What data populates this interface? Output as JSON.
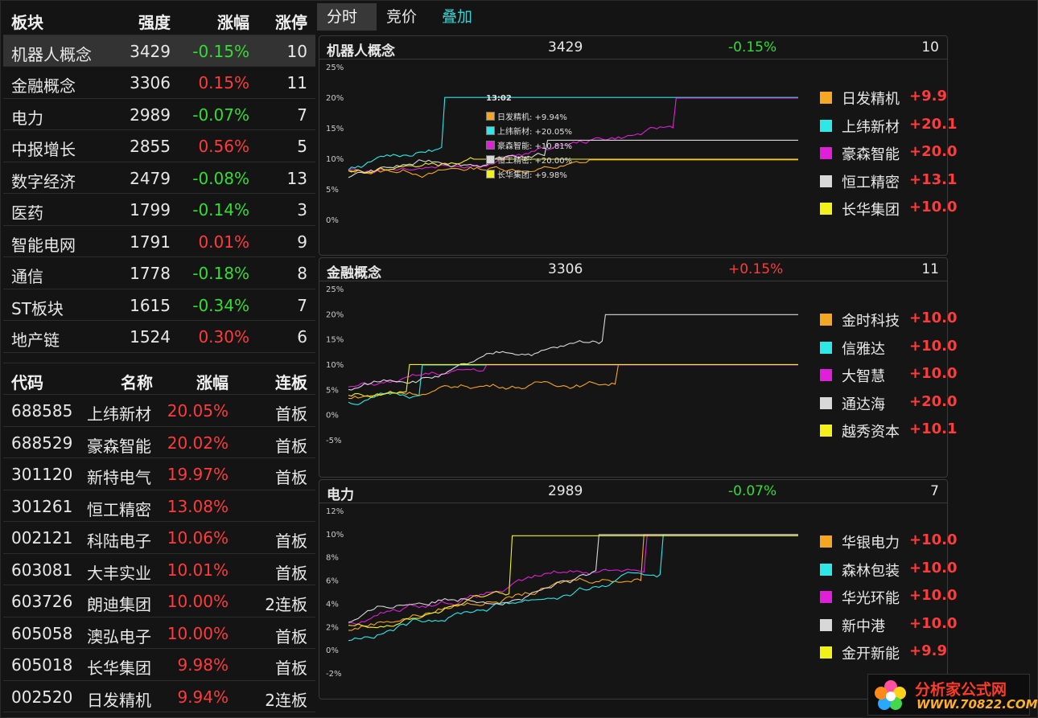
{
  "sectors": {
    "headers": {
      "name": "板块",
      "strength": "强度",
      "change": "涨幅",
      "limit_up": "涨停"
    },
    "rows": [
      {
        "name": "机器人概念",
        "strength": "3429",
        "change": "-0.15%",
        "limit_up": "10"
      },
      {
        "name": "金融概念",
        "strength": "3306",
        "change": "0.15%",
        "limit_up": "11"
      },
      {
        "name": "电力",
        "strength": "2989",
        "change": "-0.07%",
        "limit_up": "7"
      },
      {
        "name": "中报增长",
        "strength": "2855",
        "change": "0.56%",
        "limit_up": "5"
      },
      {
        "name": "数字经济",
        "strength": "2479",
        "change": "-0.08%",
        "limit_up": "13"
      },
      {
        "name": "医药",
        "strength": "1799",
        "change": "-0.14%",
        "limit_up": "3"
      },
      {
        "name": "智能电网",
        "strength": "1791",
        "change": "0.01%",
        "limit_up": "9"
      },
      {
        "name": "通信",
        "strength": "1778",
        "change": "-0.18%",
        "limit_up": "8"
      },
      {
        "name": "ST板块",
        "strength": "1615",
        "change": "-0.34%",
        "limit_up": "7"
      },
      {
        "name": "地产链",
        "strength": "1524",
        "change": "0.30%",
        "limit_up": "6"
      }
    ]
  },
  "stocks": {
    "headers": {
      "code": "代码",
      "name": "名称",
      "change": "涨幅",
      "board": "连板"
    },
    "rows": [
      {
        "code": "688585",
        "name": "上纬新材",
        "change": "20.05%",
        "board": "首板"
      },
      {
        "code": "688529",
        "name": "豪森智能",
        "change": "20.02%",
        "board": "首板"
      },
      {
        "code": "301120",
        "name": "新特电气",
        "change": "19.97%",
        "board": "首板"
      },
      {
        "code": "301261",
        "name": "恒工精密",
        "change": "13.08%",
        "board": ""
      },
      {
        "code": "002121",
        "name": "科陆电子",
        "change": "10.06%",
        "board": "首板"
      },
      {
        "code": "603081",
        "name": "大丰实业",
        "change": "10.01%",
        "board": "首板"
      },
      {
        "code": "603726",
        "name": "朗迪集团",
        "change": "10.00%",
        "board": "2连板"
      },
      {
        "code": "605058",
        "name": "澳弘电子",
        "change": "10.00%",
        "board": "首板"
      },
      {
        "code": "605018",
        "name": "长华集团",
        "change": "9.98%",
        "board": "首板"
      },
      {
        "code": "002520",
        "name": "日发精机",
        "change": "9.94%",
        "board": "2连板"
      }
    ]
  },
  "tabs": [
    "分时",
    "竞价",
    "叠加"
  ],
  "colors": {
    "orange": "#f5a623",
    "cyan": "#2ee8e8",
    "magenta": "#e020d8",
    "white": "#d8d8d8",
    "yellow": "#f2f21a"
  },
  "panels": [
    {
      "title": "机器人概念",
      "strength": "3429",
      "change": "-0.15%",
      "limit_up": "10",
      "yticks": [
        "25%",
        "20%",
        "15%",
        "10%",
        "5%",
        "0%"
      ],
      "legend": [
        {
          "name": "日发精机",
          "value": "+9.9",
          "color": "#f5a623"
        },
        {
          "name": "上纬新材",
          "value": "+20.1",
          "color": "#2ee8e8"
        },
        {
          "name": "豪森智能",
          "value": "+20.0",
          "color": "#e020d8"
        },
        {
          "name": "恒工精密",
          "value": "+13.1",
          "color": "#d8d8d8"
        },
        {
          "name": "长华集团",
          "value": "+10.0",
          "color": "#f2f21a"
        }
      ],
      "tooltip": {
        "time": "13:02",
        "rows": [
          {
            "text": "日发精机: +9.94%",
            "color": "#f5a623"
          },
          {
            "text": "上纬新材: +20.05%",
            "color": "#2ee8e8"
          },
          {
            "text": "豪森智能: +10.81%",
            "color": "#e020d8"
          },
          {
            "text": "恒工精密: +20.00%",
            "color": "#d8d8d8"
          },
          {
            "text": "长华集团: +9.98%",
            "color": "#f2f21a"
          }
        ]
      }
    },
    {
      "title": "金融概念",
      "strength": "3306",
      "change": "+0.15%",
      "limit_up": "11",
      "yticks": [
        "25%",
        "20%",
        "15%",
        "10%",
        "5%",
        "0%",
        "-5%"
      ],
      "legend": [
        {
          "name": "金时科技",
          "value": "+10.0",
          "color": "#f5a623"
        },
        {
          "name": "信雅达",
          "value": "+10.0",
          "color": "#2ee8e8"
        },
        {
          "name": "大智慧",
          "value": "+10.0",
          "color": "#e020d8"
        },
        {
          "name": "通达海",
          "value": "+20.0",
          "color": "#d8d8d8"
        },
        {
          "name": "越秀资本",
          "value": "+10.1",
          "color": "#f2f21a"
        }
      ]
    },
    {
      "title": "电力",
      "strength": "2989",
      "change": "-0.07%",
      "limit_up": "7",
      "yticks": [
        "12%",
        "10%",
        "8%",
        "6%",
        "4%",
        "2%",
        "0%",
        "-2%"
      ],
      "legend": [
        {
          "name": "华银电力",
          "value": "+10.0",
          "color": "#f5a623"
        },
        {
          "name": "森林包装",
          "value": "+10.0",
          "color": "#2ee8e8"
        },
        {
          "name": "华光环能",
          "value": "+10.0",
          "color": "#e020d8"
        },
        {
          "name": "新中港",
          "value": "+10.0",
          "color": "#d8d8d8"
        },
        {
          "name": "金开新能",
          "value": "+9.9",
          "color": "#f2f21a"
        }
      ]
    }
  ],
  "logo": {
    "line1": "分析家公式网",
    "line2": "WWW.70822.COM"
  }
}
